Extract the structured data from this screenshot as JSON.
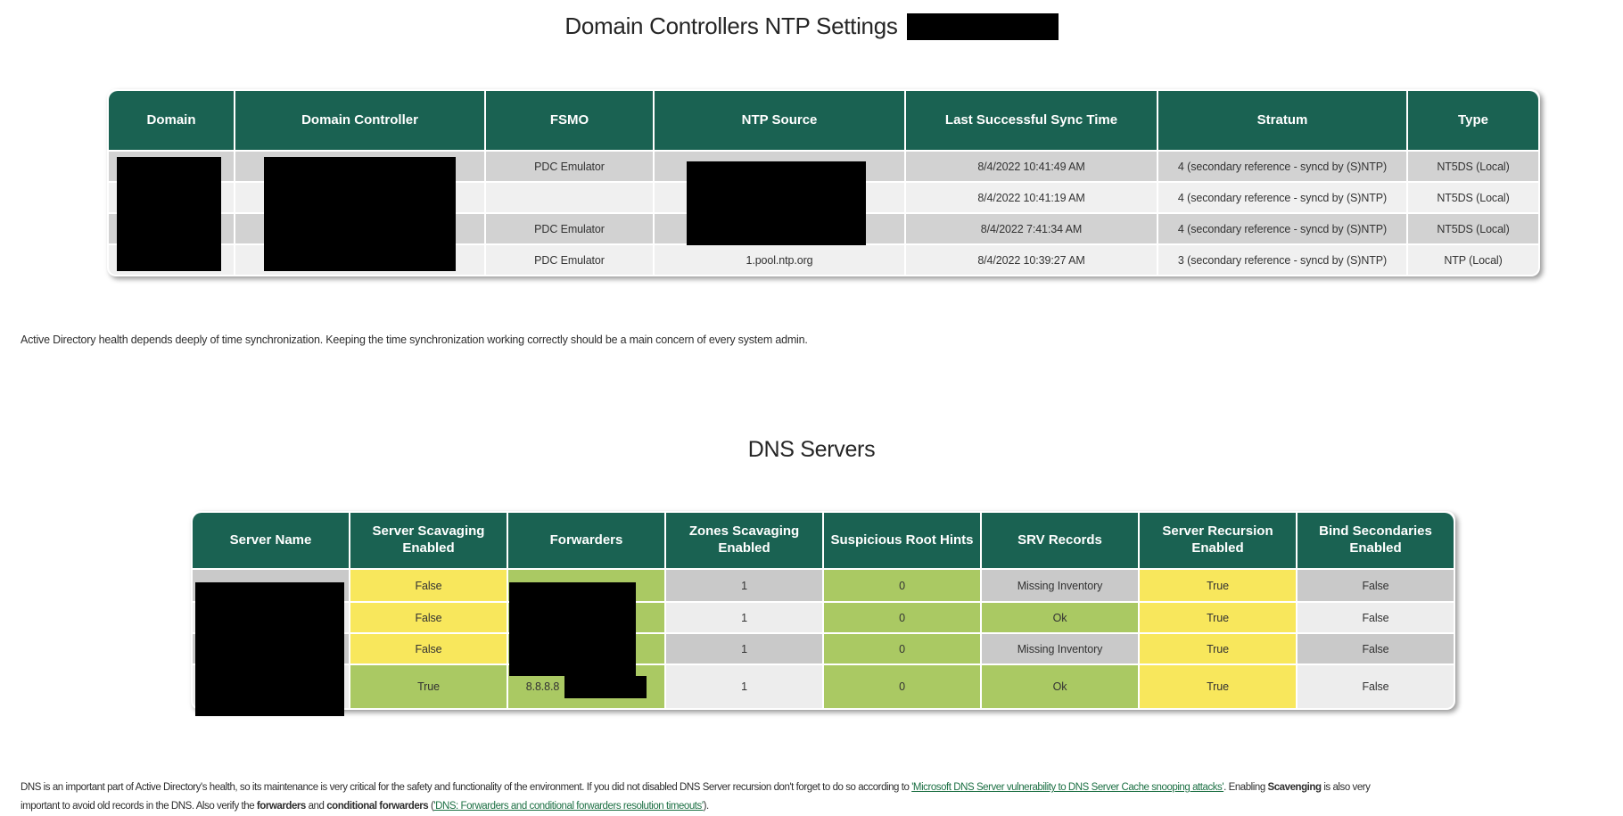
{
  "colors": {
    "header_green": "#1a6252",
    "row_gray": "#d2d2d2",
    "row_light": "#f0f0f0",
    "cell_yellow": "#f8e75c",
    "cell_green": "#aac963",
    "cell_gray": "#c9c9c9",
    "cell_light": "#ededed",
    "link_green": "#1d7044",
    "redaction": "#000000"
  },
  "ntp": {
    "title": "Domain Controllers NTP Settings",
    "columns": [
      "Domain",
      "Domain Controller",
      "FSMO",
      "NTP Source",
      "Last Successful Sync Time",
      "Stratum",
      "Type"
    ],
    "rows": [
      {
        "domain": "",
        "dc": "",
        "fsmo": "PDC Emulator",
        "source": "",
        "sync": "8/4/2022 10:41:49 AM",
        "stratum": "4 (secondary reference - syncd by (S)NTP)",
        "type": "NT5DS (Local)"
      },
      {
        "domain": "",
        "dc": "",
        "fsmo": "",
        "source": "",
        "sync": "8/4/2022 10:41:19 AM",
        "stratum": "4 (secondary reference - syncd by (S)NTP)",
        "type": "NT5DS (Local)"
      },
      {
        "domain": "",
        "dc": "",
        "fsmo": "PDC Emulator",
        "source": "",
        "sync": "8/4/2022 7:41:34 AM",
        "stratum": "4 (secondary reference - syncd by (S)NTP)",
        "type": "NT5DS (Local)"
      },
      {
        "domain": "",
        "dc": "",
        "fsmo": "PDC Emulator",
        "source": "1.pool.ntp.org",
        "sync": "8/4/2022 10:39:27 AM",
        "stratum": "3 (secondary reference - syncd by (S)NTP)",
        "type": "NTP (Local)"
      }
    ],
    "note": "Active Directory health depends deeply of time synchronization. Keeping the time synchronization working correctly should be a main concern of every system admin."
  },
  "dns": {
    "title": "DNS Servers",
    "columns": [
      "Server Name",
      "Server Scavaging Enabled",
      "Forwarders",
      "Zones Scavaging Enabled",
      "Suspicious Root Hints",
      "SRV Records",
      "Server Recursion Enabled",
      "Bind Secondaries Enabled"
    ],
    "rows": [
      {
        "name": "",
        "scavenging": "False",
        "forwarders": "",
        "zones": "1",
        "hints": "0",
        "srv": "Missing Inventory",
        "recursion": "True",
        "bind": "False"
      },
      {
        "name": "",
        "scavenging": "False",
        "forwarders": "",
        "zones": "1",
        "hints": "0",
        "srv": "Ok",
        "recursion": "True",
        "bind": "False"
      },
      {
        "name": "",
        "scavenging": "False",
        "forwarders": "",
        "zones": "1",
        "hints": "0",
        "srv": "Missing Inventory",
        "recursion": "True",
        "bind": "False"
      },
      {
        "name": "",
        "scavenging": "True",
        "forwarders": "8.8.8.8",
        "zones": "1",
        "hints": "0",
        "srv": "Ok",
        "recursion": "True",
        "bind": "False"
      }
    ],
    "note_parts": [
      {
        "text": "DNS is an important part of Active Directory's health, so its maintenance is very critical for the safety and functionality of the environment. If you did not disabled DNS Server recursion don't forget to do so according to "
      },
      {
        "text": "'Microsoft DNS Server vulnerability to DNS Server Cache snooping attacks'",
        "style": "link"
      },
      {
        "text": ". Enabling "
      },
      {
        "text": "Scavenging",
        "style": "bold"
      },
      {
        "text": " is also very"
      },
      {
        "style": "br"
      },
      {
        "text": "important to avoid old records in the DNS. Also verify the "
      },
      {
        "text": "forwarders",
        "style": "bold"
      },
      {
        "text": " and "
      },
      {
        "text": "conditional forwarders",
        "style": "bold"
      },
      {
        "text": " ("
      },
      {
        "text": "'DNS: Forwarders and conditional forwarders resolution timeouts'",
        "style": "link"
      },
      {
        "text": ")."
      }
    ]
  }
}
